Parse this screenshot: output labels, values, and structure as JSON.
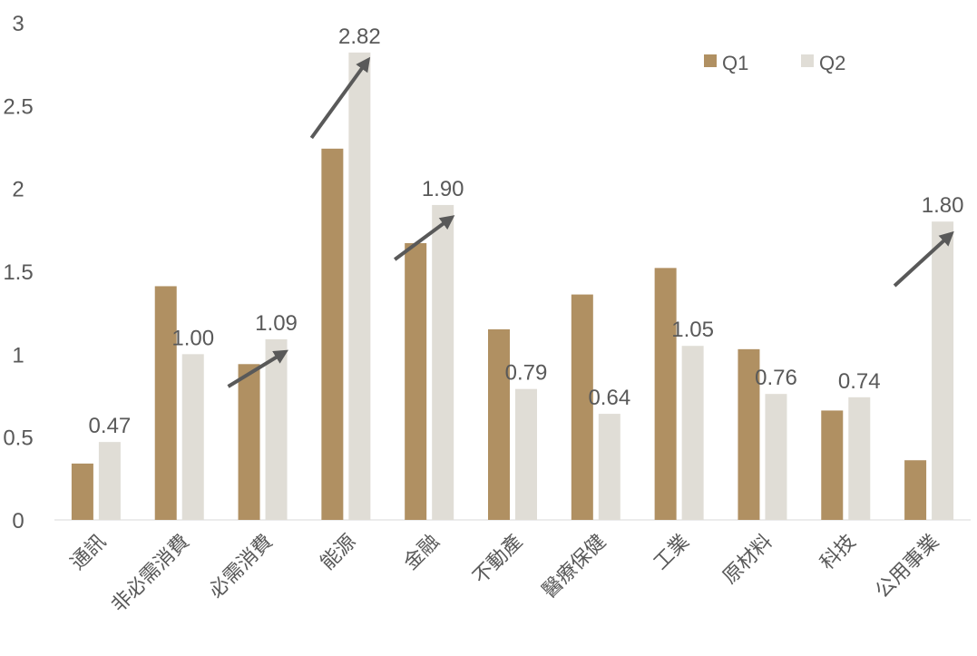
{
  "chart_data": {
    "type": "bar",
    "categories": [
      "通訊",
      "非必需消費",
      "必需消費",
      "能源",
      "金融",
      "不動產",
      "醫療保健",
      "工業",
      "原材料",
      "科技",
      "公用事業"
    ],
    "series": [
      {
        "name": "Q1",
        "color": "#B09062",
        "values": [
          0.34,
          1.41,
          0.94,
          2.24,
          1.67,
          1.15,
          1.36,
          1.52,
          1.03,
          0.66,
          0.36
        ]
      },
      {
        "name": "Q2",
        "color": "#E0DDD6",
        "values": [
          0.47,
          1.0,
          1.09,
          2.82,
          1.9,
          0.79,
          0.64,
          1.05,
          0.76,
          0.74,
          1.8
        ]
      }
    ],
    "data_labels": [
      "0.47",
      "1.00",
      "1.09",
      "2.82",
      "1.90",
      "0.79",
      "0.64",
      "1.05",
      "0.76",
      "0.74",
      "1.80"
    ],
    "arrows_on": [
      "必需消費",
      "能源",
      "金融",
      "公用事業"
    ],
    "arrow_color": "#595959",
    "ylim": [
      0,
      3
    ],
    "yticks": [
      "0",
      "0.5",
      "1",
      "1.5",
      "2",
      "2.5",
      "3"
    ],
    "grid": false,
    "legend": "top-right"
  }
}
